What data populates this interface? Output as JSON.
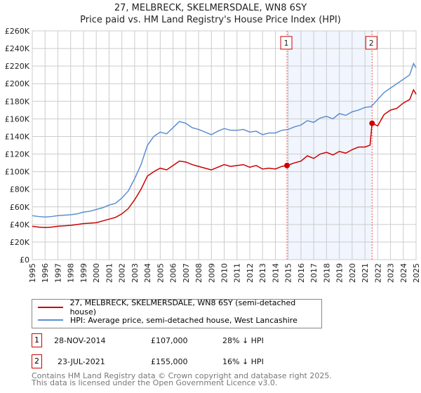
{
  "chart_data": {
    "type": "line",
    "title": "27, MELBRECK, SKELMERSDALE, WN8 6SY",
    "subtitle": "Price paid vs. HM Land Registry's House Price Index (HPI)",
    "xlim": [
      1995,
      2025
    ],
    "ylim": [
      0,
      260000
    ],
    "x_ticks": [
      "1995",
      "1996",
      "1997",
      "1998",
      "1999",
      "2000",
      "2001",
      "2002",
      "2003",
      "2004",
      "2005",
      "2006",
      "2007",
      "2008",
      "2009",
      "2010",
      "2011",
      "2012",
      "2013",
      "2014",
      "2015",
      "2016",
      "2017",
      "2018",
      "2019",
      "2020",
      "2021",
      "2022",
      "2023",
      "2024",
      "2025"
    ],
    "y_ticks": [
      "£0",
      "£20K",
      "£40K",
      "£60K",
      "£80K",
      "£100K",
      "£120K",
      "£140K",
      "£160K",
      "£180K",
      "£200K",
      "£220K",
      "£240K",
      "£260K"
    ],
    "grid": true,
    "series": [
      {
        "name": "27, MELBRECK, SKELMERSDALE, WN8 6SY (semi-detached house)",
        "color": "#cc0000",
        "x": [
          1995,
          1995.5,
          1996,
          1996.5,
          1997,
          1997.5,
          1998,
          1998.5,
          1999,
          1999.5,
          2000,
          2000.5,
          2001,
          2001.5,
          2002,
          2002.5,
          2003,
          2003.5,
          2004,
          2004.5,
          2005,
          2005.5,
          2006,
          2006.5,
          2007,
          2007.5,
          2008,
          2008.5,
          2009,
          2009.5,
          2010,
          2010.5,
          2011,
          2011.5,
          2012,
          2012.5,
          2013,
          2013.5,
          2014,
          2014.5,
          2014.91,
          2015.5,
          2016,
          2016.5,
          2017,
          2017.5,
          2018,
          2018.5,
          2019,
          2019.5,
          2020,
          2020.5,
          2021,
          2021.4,
          2021.56,
          2022,
          2022.5,
          2023,
          2023.5,
          2024,
          2024.5,
          2024.8,
          2025
        ],
        "y": [
          38000,
          37000,
          36500,
          37000,
          38000,
          38500,
          39000,
          40000,
          41000,
          41500,
          42000,
          44000,
          46000,
          48000,
          52000,
          58000,
          68000,
          80000,
          95000,
          100000,
          104000,
          102000,
          107000,
          112000,
          111000,
          108000,
          106000,
          104000,
          102000,
          105000,
          108000,
          106000,
          107000,
          108000,
          105000,
          107000,
          103000,
          104000,
          103000,
          106000,
          107000,
          110000,
          112000,
          118000,
          115000,
          120000,
          122000,
          119000,
          123000,
          121000,
          125000,
          128000,
          128000,
          130000,
          155000,
          152000,
          165000,
          170000,
          172000,
          178000,
          182000,
          193000,
          188000
        ]
      },
      {
        "name": "HPI: Average price, semi-detached house, West Lancashire",
        "color": "#5b8fd0",
        "x": [
          1995,
          1995.5,
          1996,
          1996.5,
          1997,
          1997.5,
          1998,
          1998.5,
          1999,
          1999.5,
          2000,
          2000.5,
          2001,
          2001.5,
          2002,
          2002.5,
          2003,
          2003.5,
          2004,
          2004.5,
          2005,
          2005.5,
          2006,
          2006.5,
          2007,
          2007.5,
          2008,
          2008.5,
          2009,
          2009.5,
          2010,
          2010.5,
          2011,
          2011.5,
          2012,
          2012.5,
          2013,
          2013.5,
          2014,
          2014.5,
          2015,
          2015.5,
          2016,
          2016.5,
          2017,
          2017.5,
          2018,
          2018.5,
          2019,
          2019.5,
          2020,
          2020.5,
          2021,
          2021.5,
          2022,
          2022.5,
          2023,
          2023.5,
          2024,
          2024.5,
          2024.8,
          2025
        ],
        "y": [
          50000,
          49000,
          48500,
          49000,
          50000,
          50500,
          51000,
          52000,
          54000,
          55000,
          57000,
          59000,
          62000,
          64000,
          70000,
          78000,
          92000,
          108000,
          130000,
          140000,
          145000,
          143000,
          150000,
          157000,
          155000,
          150000,
          148000,
          145000,
          142000,
          146000,
          149000,
          147000,
          147000,
          148000,
          145000,
          146000,
          142000,
          144000,
          144000,
          147000,
          148000,
          151000,
          153000,
          158000,
          156000,
          161000,
          163000,
          160000,
          166000,
          164000,
          168000,
          170000,
          173000,
          174000,
          182000,
          190000,
          195000,
          200000,
          205000,
          210000,
          223000,
          218000
        ]
      }
    ],
    "markers": [
      {
        "label": "1",
        "x": 2014.91,
        "y": 107000
      },
      {
        "label": "2",
        "x": 2021.56,
        "y": 155000
      }
    ]
  },
  "legend": {
    "items": [
      "27, MELBRECK, SKELMERSDALE, WN8 6SY (semi-detached house)",
      "HPI: Average price, semi-detached house, West Lancashire"
    ]
  },
  "transactions": [
    {
      "num": "1",
      "date": "28-NOV-2014",
      "price": "£107,000",
      "diff": "28% ↓ HPI"
    },
    {
      "num": "2",
      "date": "23-JUL-2021",
      "price": "£155,000",
      "diff": "16% ↓ HPI"
    }
  ],
  "footer": [
    "Contains HM Land Registry data © Crown copyright and database right 2025.",
    "This data is licensed under the Open Government Licence v3.0."
  ]
}
